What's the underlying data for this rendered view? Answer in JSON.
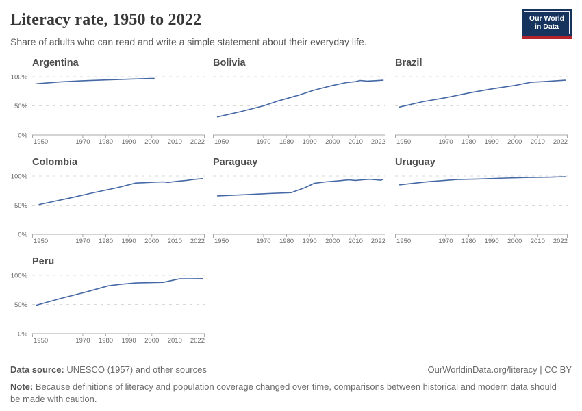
{
  "header": {
    "title": "Literacy rate, 1950 to 2022",
    "subtitle": "Share of adults who can read and write a simple statement about their everyday life.",
    "logo": {
      "line1": "Our World",
      "line2": "in Data"
    }
  },
  "colors": {
    "line": "#4669a5",
    "grid": "#d8d8d8",
    "axis": "#a8a8a8",
    "tick_label": "#696969",
    "facet_title": "#4e4e4e",
    "title_text": "#373737",
    "subtitle_text": "#565656",
    "footer_text": "#6b6b6b",
    "logo_bg": "#15335d",
    "logo_accent": "#b5232d"
  },
  "chart_data": {
    "type": "line",
    "title": "Literacy rate, 1950 to 2022",
    "xlabel": "",
    "ylabel": "",
    "ylim": [
      0,
      100
    ],
    "yticks": [
      0,
      50,
      100
    ],
    "ytick_suffix": "%",
    "xdomain": [
      1948,
      2023
    ],
    "xtick_labels": [
      1950,
      1970,
      1980,
      1990,
      2000,
      2010,
      2022
    ],
    "grid": "dashed-horizontal",
    "legend": "none",
    "facets": [
      {
        "name": "Argentina",
        "points": [
          [
            1950,
            88
          ],
          [
            1960,
            91
          ],
          [
            1970,
            93
          ],
          [
            1980,
            94.5
          ],
          [
            1991,
            96
          ],
          [
            2001,
            97.2
          ]
        ]
      },
      {
        "name": "Bolivia",
        "points": [
          [
            1950,
            31
          ],
          [
            1960,
            40
          ],
          [
            1970,
            50
          ],
          [
            1976,
            58
          ],
          [
            1985,
            68
          ],
          [
            1992,
            77
          ],
          [
            2000,
            85
          ],
          [
            2006,
            90
          ],
          [
            2010,
            91.5
          ],
          [
            2012,
            93.5
          ],
          [
            2015,
            92.5
          ],
          [
            2018,
            93
          ],
          [
            2022,
            94
          ]
        ]
      },
      {
        "name": "Brazil",
        "points": [
          [
            1950,
            48
          ],
          [
            1960,
            57
          ],
          [
            1970,
            64
          ],
          [
            1980,
            72
          ],
          [
            1990,
            79
          ],
          [
            2000,
            85
          ],
          [
            2007,
            90.5
          ],
          [
            2010,
            91
          ],
          [
            2014,
            92
          ],
          [
            2022,
            94
          ]
        ]
      },
      {
        "name": "Colombia",
        "points": [
          [
            1951,
            51
          ],
          [
            1964,
            62
          ],
          [
            1973,
            70
          ],
          [
            1985,
            80
          ],
          [
            1993,
            88
          ],
          [
            1996,
            88.5
          ],
          [
            2001,
            89.5
          ],
          [
            2005,
            90
          ],
          [
            2007,
            89
          ],
          [
            2010,
            90.5
          ],
          [
            2015,
            92.5
          ],
          [
            2018,
            94
          ],
          [
            2022,
            95.5
          ]
        ]
      },
      {
        "name": "Paraguay",
        "points": [
          [
            1950,
            66
          ],
          [
            1962,
            68
          ],
          [
            1972,
            70
          ],
          [
            1982,
            71.5
          ],
          [
            1988,
            80
          ],
          [
            1992,
            87.5
          ],
          [
            1997,
            90
          ],
          [
            2002,
            91.5
          ],
          [
            2007,
            93.5
          ],
          [
            2010,
            92.5
          ],
          [
            2013,
            93.5
          ],
          [
            2016,
            94.5
          ],
          [
            2019,
            93.5
          ],
          [
            2021,
            92.8
          ],
          [
            2022,
            94.5
          ]
        ]
      },
      {
        "name": "Uruguay",
        "points": [
          [
            1950,
            85
          ],
          [
            1957,
            88
          ],
          [
            1963,
            90.5
          ],
          [
            1975,
            94
          ],
          [
            1985,
            95
          ],
          [
            1996,
            96.5
          ],
          [
            2006,
            97.5
          ],
          [
            2015,
            98
          ],
          [
            2022,
            98.8
          ]
        ]
      },
      {
        "name": "Peru",
        "points": [
          [
            1950,
            49
          ],
          [
            1961,
            61
          ],
          [
            1972,
            72
          ],
          [
            1981,
            82
          ],
          [
            1986,
            84.5
          ],
          [
            1993,
            87
          ],
          [
            2000,
            87.5
          ],
          [
            2005,
            88
          ],
          [
            2012,
            94
          ],
          [
            2017,
            94
          ],
          [
            2022,
            94.3
          ]
        ]
      }
    ]
  },
  "footer": {
    "source_label": "Data source:",
    "source_text": "UNESCO (1957) and other sources",
    "url_line": "OurWorldinData.org/literacy | CC BY",
    "note_label": "Note:",
    "note_text": "Because definitions of literacy and population coverage changed over time, comparisons between historical and modern data should be made with caution."
  }
}
